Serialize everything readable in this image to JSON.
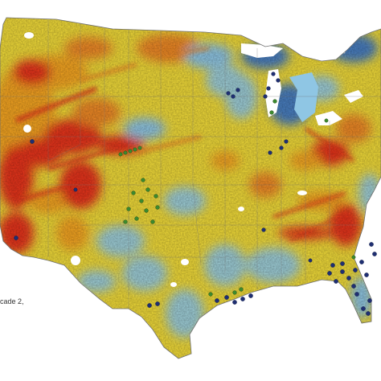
{
  "caption": "cade 2,",
  "colors": {
    "water": "#ffffff",
    "lake": "#8fc6e4",
    "low": "#4a7fc1",
    "mid_low": "#9fcfd8",
    "mid": "#f5e33a",
    "mid_high": "#f6a623",
    "high": "#e8341e",
    "point_blue": "#1f2f72",
    "point_green": "#3c8a2e",
    "boundary": "#6e6e6e"
  },
  "legend_point_classes": [
    "blue-points",
    "green-points"
  ]
}
